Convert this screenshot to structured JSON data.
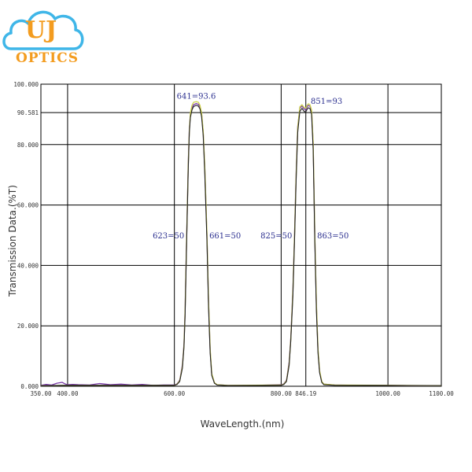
{
  "logo": {
    "letters": "UJ",
    "text": "OPTICS",
    "cloud_color": "#3fb6e8",
    "letter_color": "#f39c1f",
    "text_color": "#f39c1f"
  },
  "chart_data": {
    "type": "line",
    "title": "",
    "xlabel": "WaveLength.(nm)",
    "ylabel": "Transmission Data.(%T)",
    "xlim": [
      350,
      1100
    ],
    "ylim": [
      0,
      100
    ],
    "grid": true,
    "x_ticks": [
      {
        "value": 350,
        "label": "350.00"
      },
      {
        "value": 400,
        "label": "400.00"
      },
      {
        "value": 600,
        "label": "600.00"
      },
      {
        "value": 800,
        "label": "800.00"
      },
      {
        "value": 846.19,
        "label": "846.19"
      },
      {
        "value": 1000,
        "label": "1000.00"
      },
      {
        "value": 1100,
        "label": "1100.00"
      }
    ],
    "x_gridlines": [
      400,
      600,
      800,
      846.19,
      1000
    ],
    "y_ticks": [
      {
        "value": 0,
        "label": "0.000"
      },
      {
        "value": 20,
        "label": "20.000"
      },
      {
        "value": 40,
        "label": "40.000"
      },
      {
        "value": 60,
        "label": "60.000"
      },
      {
        "value": 80,
        "label": "80.000"
      },
      {
        "value": 90.581,
        "label": "90.581"
      },
      {
        "value": 100,
        "label": "100.000"
      }
    ],
    "y_gridlines": [
      20,
      40,
      60,
      80,
      90.581
    ],
    "annotations": [
      {
        "text": "641=93.6",
        "x": 641,
        "y": 93.6,
        "anchor": "middle",
        "dy": -6
      },
      {
        "text": "623=50",
        "x": 623,
        "y": 50,
        "anchor": "end",
        "dy": 4
      },
      {
        "text": "661=50",
        "x": 661,
        "y": 50,
        "anchor": "start",
        "dy": 4
      },
      {
        "text": "851=93",
        "x": 851,
        "y": 93,
        "anchor": "start",
        "dy": -2
      },
      {
        "text": "825=50",
        "x": 825,
        "y": 50,
        "anchor": "end",
        "dy": 4
      },
      {
        "text": "863=50",
        "x": 863,
        "y": 50,
        "anchor": "start",
        "dy": 4
      }
    ],
    "series": [
      {
        "color": "#7a3aa8",
        "x": [
          350,
          360,
          370,
          380,
          390,
          395,
          400,
          410,
          420,
          440,
          460,
          480,
          500,
          520,
          540,
          560,
          580,
          600,
          605,
          610,
          615,
          618,
          620,
          623,
          626,
          628,
          630,
          633,
          636,
          641,
          645,
          648,
          651,
          654,
          657,
          661,
          664,
          667,
          670,
          675,
          680,
          700,
          750,
          780,
          800,
          805,
          810,
          815,
          818,
          822,
          825,
          828,
          831,
          835,
          839,
          843,
          846,
          849,
          851,
          854,
          857,
          860,
          863,
          866,
          869,
          872,
          876,
          880,
          900,
          950,
          1000,
          1050,
          1100
        ],
        "y": [
          0.3,
          0.6,
          0.4,
          1.0,
          1.3,
          0.8,
          0.5,
          0.6,
          0.5,
          0.4,
          0.9,
          0.5,
          0.7,
          0.4,
          0.6,
          0.3,
          0.4,
          0.4,
          0.8,
          2,
          7,
          14,
          25,
          50,
          74,
          85,
          90,
          92,
          93.2,
          93.6,
          93.3,
          92.5,
          90,
          84,
          72,
          50,
          28,
          12,
          4,
          1.2,
          0.5,
          0.3,
          0.3,
          0.4,
          0.5,
          0.8,
          2,
          8,
          16,
          32,
          50,
          70,
          86,
          92,
          92.8,
          91.8,
          91.5,
          92.6,
          93,
          92.7,
          91,
          80,
          50,
          27,
          12,
          5,
          1.5,
          0.7,
          0.4,
          0.3,
          0.3,
          0.2,
          0.2
        ]
      },
      {
        "color": "#cdd24a",
        "x": [
          350,
          400,
          500,
          600,
          605,
          610,
          615,
          618,
          620,
          623,
          626,
          628,
          630,
          633,
          636,
          641,
          645,
          648,
          651,
          654,
          657,
          661,
          664,
          667,
          670,
          675,
          680,
          700,
          800,
          805,
          810,
          815,
          818,
          822,
          825,
          828,
          831,
          835,
          839,
          843,
          846,
          849,
          851,
          854,
          857,
          860,
          863,
          866,
          869,
          872,
          876,
          880,
          900,
          1100
        ],
        "y": [
          0.2,
          0.3,
          0.3,
          0.3,
          0.7,
          1.8,
          6.5,
          13.5,
          24.5,
          49.5,
          73.5,
          84.5,
          90.5,
          93,
          94,
          94.2,
          94,
          93,
          90.5,
          84.5,
          72.5,
          50.5,
          28.5,
          12.5,
          4.2,
          1.2,
          0.5,
          0.3,
          0.4,
          0.7,
          1.8,
          7.5,
          15.5,
          31.5,
          49.5,
          69.5,
          85.5,
          92.5,
          93.2,
          92.3,
          92,
          93.1,
          93.5,
          93.2,
          91.5,
          80.5,
          50.5,
          27.5,
          12.5,
          5.2,
          1.6,
          0.7,
          0.4,
          0.2
        ]
      },
      {
        "color": "#222222",
        "x": [
          350,
          400,
          500,
          600,
          605,
          610,
          615,
          618,
          620,
          623,
          626,
          628,
          630,
          633,
          636,
          641,
          645,
          648,
          651,
          654,
          657,
          661,
          664,
          667,
          670,
          675,
          680,
          700,
          800,
          805,
          810,
          815,
          818,
          822,
          825,
          828,
          831,
          835,
          839,
          843,
          846,
          849,
          851,
          854,
          857,
          860,
          863,
          866,
          869,
          872,
          876,
          880,
          900,
          1100
        ],
        "y": [
          0.2,
          0.3,
          0.3,
          0.3,
          0.6,
          1.6,
          6,
          13,
          23,
          48,
          72,
          84,
          89,
          91.5,
          92.6,
          93,
          92.7,
          91.8,
          89.2,
          83,
          70,
          48,
          26,
          11,
          3.6,
          1,
          0.4,
          0.2,
          0.3,
          0.6,
          1.6,
          7,
          15,
          30,
          48,
          68,
          84,
          91,
          92,
          91,
          90.8,
          91.8,
          92.2,
          91.9,
          90,
          78,
          48,
          25,
          11,
          4.5,
          1.3,
          0.5,
          0.3,
          0.2
        ]
      }
    ]
  }
}
